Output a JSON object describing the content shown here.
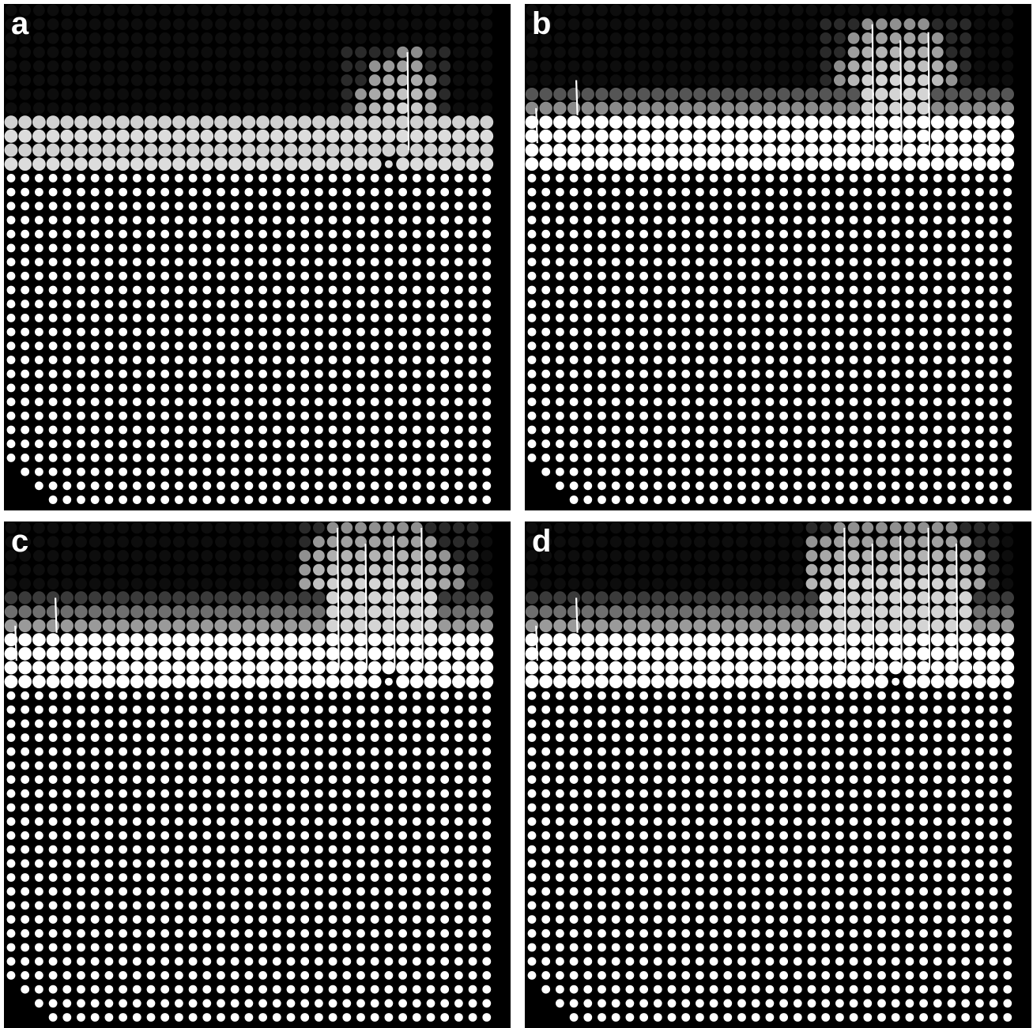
{
  "figure": {
    "background_color": "#000000",
    "page_background_color": "#ffffff",
    "particle_color": "#ffffff",
    "panels": [
      {
        "id": "a",
        "label": "a",
        "mound_center_column": 27,
        "mound": [
          [
            25,
            0.45
          ],
          [
            26,
            0.7
          ],
          [
            27,
            0.85
          ],
          [
            28,
            1.0
          ],
          [
            29,
            0.9
          ],
          [
            30,
            0.6
          ]
        ],
        "halo_columns": [
          24,
          25,
          26,
          27,
          28,
          29,
          30,
          31
        ],
        "surface_tiers": [
          0,
          0,
          1,
          1,
          0
        ],
        "tier_colors": [
          "#d8d8d8",
          "#c8c8c8",
          "#d0d0d0",
          "#dcdcdc"
        ]
      },
      {
        "id": "b",
        "label": "b",
        "mound_center_column": 26,
        "mound": [
          [
            22,
            0.35
          ],
          [
            23,
            0.7
          ],
          [
            24,
            0.95
          ],
          [
            25,
            1.0
          ],
          [
            26,
            1.0
          ],
          [
            27,
            1.0
          ],
          [
            28,
            0.95
          ],
          [
            29,
            0.75
          ],
          [
            30,
            0.35
          ]
        ],
        "halo_columns": [
          21,
          22,
          23,
          24,
          25,
          26,
          27,
          28,
          29,
          30,
          31
        ],
        "surface_tiers": [
          1,
          1,
          1,
          1,
          1
        ],
        "tier_colors": [
          "#555555",
          "#8a8a8a",
          "#ffffff",
          "#ffffff"
        ]
      },
      {
        "id": "c",
        "label": "c",
        "mound_center_column": 27,
        "mound": [
          [
            21,
            0.5
          ],
          [
            22,
            0.8
          ],
          [
            23,
            0.95
          ],
          [
            24,
            1.0
          ],
          [
            25,
            1.0
          ],
          [
            26,
            1.0
          ],
          [
            27,
            1.0
          ],
          [
            28,
            1.0
          ],
          [
            29,
            0.95
          ],
          [
            30,
            0.85
          ],
          [
            31,
            0.55
          ],
          [
            32,
            0.3
          ]
        ],
        "halo_columns": [
          21,
          22,
          23,
          24,
          25,
          26,
          27,
          28,
          29,
          30,
          31,
          32,
          33
        ],
        "surface_tiers": [
          2,
          2,
          2,
          2,
          2
        ],
        "tier_colors": [
          "#3a3a3a",
          "#6e6e6e",
          "#9a9a9a",
          "#ffffff"
        ]
      },
      {
        "id": "d",
        "label": "d",
        "mound_center_column": 26,
        "mound": [
          [
            20,
            0.7
          ],
          [
            21,
            0.85
          ],
          [
            22,
            0.95
          ],
          [
            23,
            1.0
          ],
          [
            24,
            1.0
          ],
          [
            25,
            1.0
          ],
          [
            26,
            1.0
          ],
          [
            27,
            1.0
          ],
          [
            28,
            1.0
          ],
          [
            29,
            1.0
          ],
          [
            30,
            0.95
          ],
          [
            31,
            0.85
          ],
          [
            32,
            0.5
          ]
        ],
        "halo_columns": [
          20,
          21,
          22,
          23,
          24,
          25,
          26,
          27,
          28,
          29,
          30,
          31,
          32,
          33
        ],
        "surface_tiers": [
          2,
          2,
          2,
          2,
          2
        ],
        "tier_colors": [
          "#3a3a3a",
          "#6e6e6e",
          "#9a9a9a",
          "#ffffff"
        ]
      }
    ]
  }
}
